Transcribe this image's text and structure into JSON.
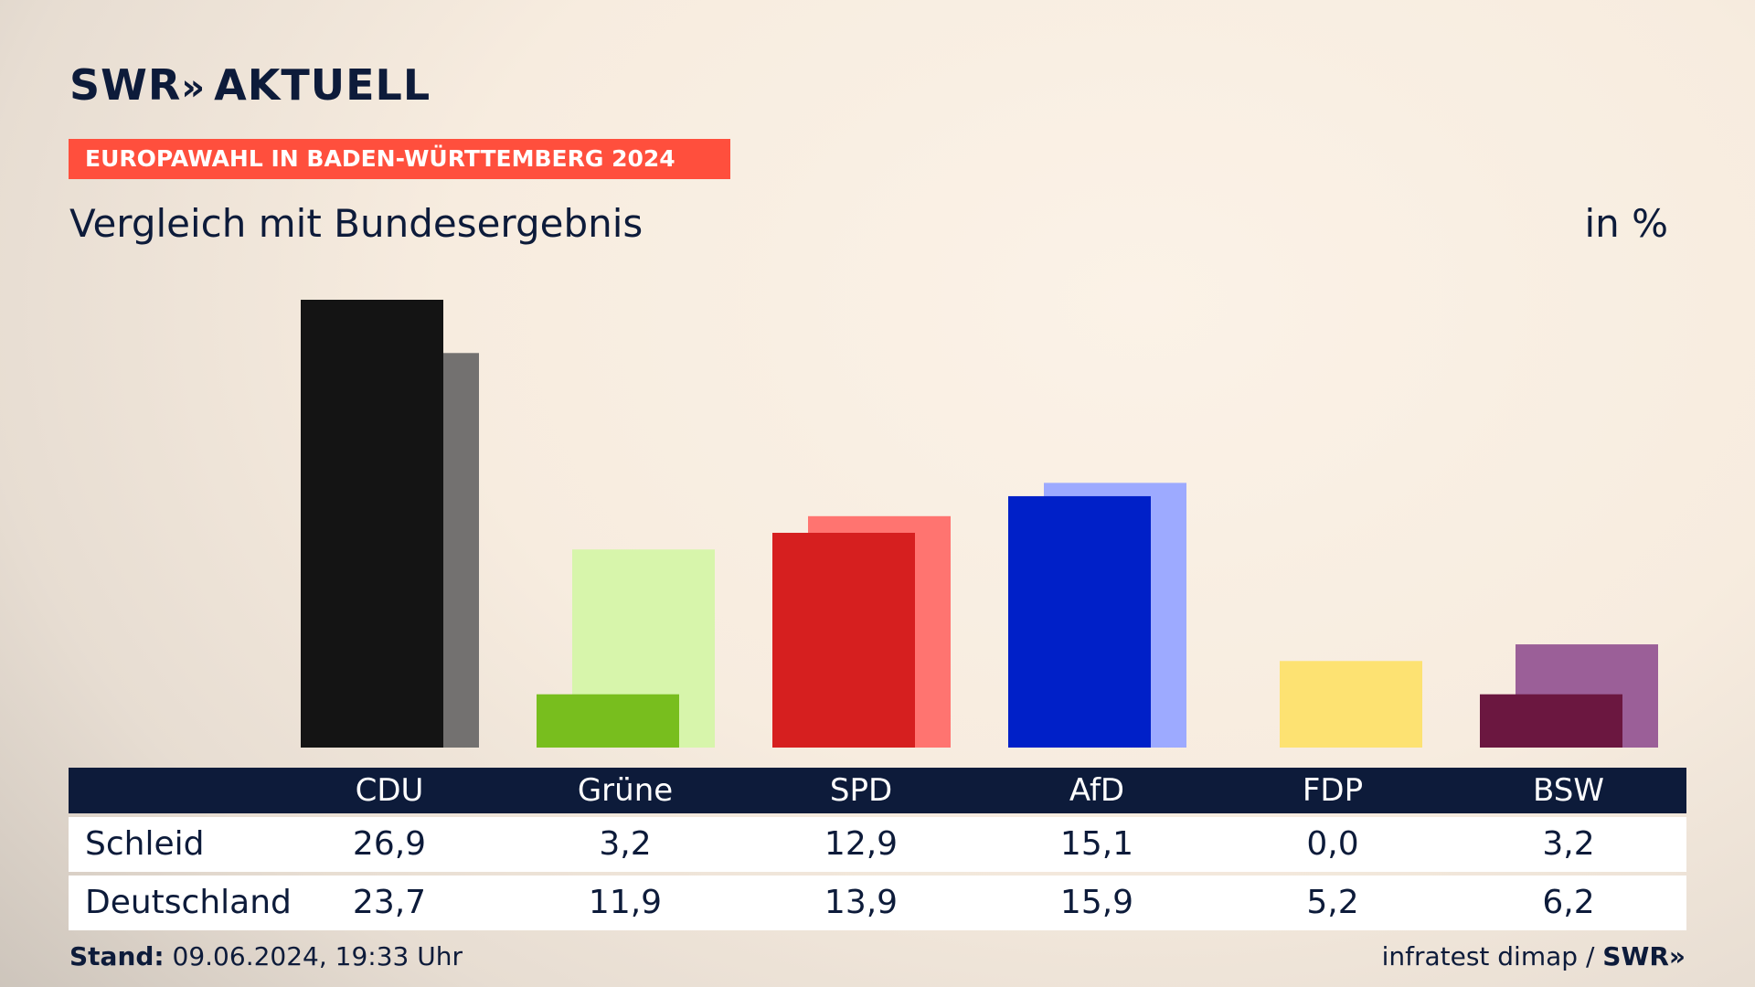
{
  "header": {
    "logo": "SWR",
    "logo_arrows": "»",
    "logo_suffix": "AKTUELL",
    "banner": "EUROPAWAHL IN BADEN-WÜRTTEMBERG 2024",
    "subtitle": "Vergleich mit Bundesergebnis",
    "unit": "in %"
  },
  "chart_data": {
    "type": "bar",
    "categories": [
      "CDU",
      "Grüne",
      "SPD",
      "AfD",
      "FDP",
      "BSW"
    ],
    "series": [
      {
        "name": "Schleid",
        "values": [
          26.9,
          3.2,
          12.9,
          15.1,
          0.0,
          3.2
        ],
        "display": [
          "26,9",
          "3,2",
          "12,9",
          "15,1",
          "0,0",
          "3,2"
        ],
        "colors": [
          "#141414",
          "#78be1e",
          "#d61f1f",
          "#0020c8",
          "#f5d800",
          "#6b1740"
        ]
      },
      {
        "name": "Deutschland",
        "values": [
          23.7,
          11.9,
          13.9,
          15.9,
          5.2,
          6.2
        ],
        "display": [
          "23,7",
          "11,9",
          "13,9",
          "15,9",
          "5,2",
          "6,2"
        ],
        "colors": [
          "#737170",
          "#d7f5ab",
          "#ff7470",
          "#9daaff",
          "#fde272",
          "#9b5f98"
        ]
      }
    ],
    "ylim": [
      0,
      26.9
    ]
  },
  "footer": {
    "stand_label": "Stand:",
    "stand_value": "09.06.2024, 19:33 Uhr",
    "source": "infratest dimap",
    "source_sep": "/",
    "source_brand": "SWR»"
  }
}
